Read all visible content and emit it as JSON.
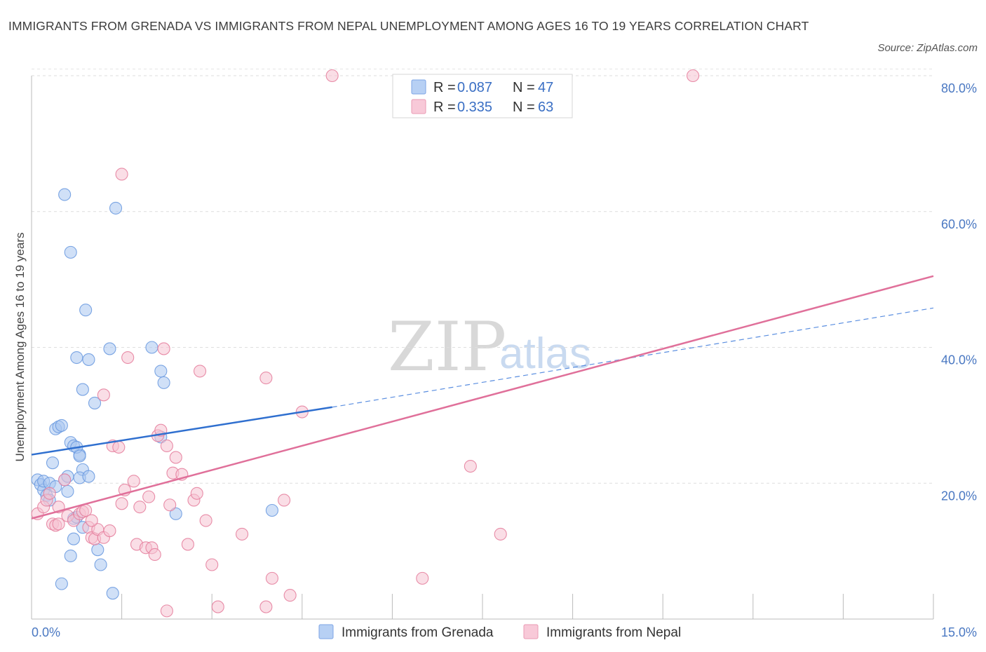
{
  "header": {
    "title": "IMMIGRANTS FROM GRENADA VS IMMIGRANTS FROM NEPAL UNEMPLOYMENT AMONG AGES 16 TO 19 YEARS CORRELATION CHART",
    "source": "Source: ZipAtlas.com"
  },
  "watermark": {
    "zip": "ZIP",
    "atlas": "atlas"
  },
  "legend": {
    "rows": [
      {
        "r_label": "R = ",
        "r_value": "0.087",
        "n_label": "N = ",
        "n_value": "47",
        "color": "#9dbfed"
      },
      {
        "r_label": "R = ",
        "r_value": "0.335",
        "n_label": "N = ",
        "n_value": "63",
        "color": "#f4b8cb"
      }
    ]
  },
  "chart_data": {
    "type": "scatter",
    "title": "IMMIGRANTS FROM GRENADA VS IMMIGRANTS FROM NEPAL UNEMPLOYMENT AMONG AGES 16 TO 19 YEARS CORRELATION CHART",
    "xlabel": "",
    "ylabel": "Unemployment Among Ages 16 to 19 years",
    "xlim": [
      0,
      15
    ],
    "ylim": [
      0,
      80
    ],
    "x_tick_labels": [
      "0.0%",
      "15.0%"
    ],
    "y_ticks": [
      20,
      40,
      60,
      80
    ],
    "y_tick_labels": [
      "20.0%",
      "40.0%",
      "60.0%",
      "80.0%"
    ],
    "grid": true,
    "legend_position": "top-center",
    "series": [
      {
        "name": "Immigrants from Grenada",
        "color": "#6d9be0",
        "fill": "#a9c7f0",
        "R": 0.087,
        "N": 47,
        "trend": {
          "x": [
            0,
            5.0
          ],
          "y": [
            24.2,
            31.2
          ],
          "dashed_to_x": 15,
          "dashed_to_y": 45.8
        },
        "points": [
          [
            0.1,
            20.5
          ],
          [
            0.15,
            19.8
          ],
          [
            0.2,
            19.0
          ],
          [
            0.25,
            18.2
          ],
          [
            0.3,
            17.5
          ],
          [
            0.2,
            20.3
          ],
          [
            0.35,
            23.0
          ],
          [
            0.4,
            28.0
          ],
          [
            0.45,
            28.3
          ],
          [
            0.5,
            28.5
          ],
          [
            0.55,
            20.5
          ],
          [
            0.6,
            21.0
          ],
          [
            0.7,
            14.8
          ],
          [
            0.75,
            15.0
          ],
          [
            0.8,
            24.2
          ],
          [
            0.85,
            22.0
          ],
          [
            0.55,
            62.5
          ],
          [
            0.5,
            5.2
          ],
          [
            0.65,
            54.0
          ],
          [
            0.9,
            45.5
          ],
          [
            0.75,
            38.5
          ],
          [
            0.95,
            38.2
          ],
          [
            0.85,
            33.8
          ],
          [
            1.05,
            31.8
          ],
          [
            0.65,
            26.0
          ],
          [
            0.7,
            25.5
          ],
          [
            0.75,
            25.3
          ],
          [
            0.8,
            20.8
          ],
          [
            0.95,
            21.0
          ],
          [
            0.85,
            13.5
          ],
          [
            0.7,
            11.8
          ],
          [
            0.65,
            9.3
          ],
          [
            1.1,
            10.2
          ],
          [
            1.15,
            8.0
          ],
          [
            1.4,
            60.5
          ],
          [
            1.3,
            39.8
          ],
          [
            2.0,
            40.0
          ],
          [
            2.15,
            36.5
          ],
          [
            2.2,
            34.8
          ],
          [
            2.15,
            26.8
          ],
          [
            2.4,
            15.5
          ],
          [
            4.0,
            16.0
          ],
          [
            1.35,
            3.8
          ],
          [
            0.3,
            20.0
          ],
          [
            0.4,
            19.5
          ],
          [
            0.6,
            18.8
          ],
          [
            0.8,
            24.0
          ]
        ]
      },
      {
        "name": "Immigrants from Nepal",
        "color": "#e6819f",
        "fill": "#f6c2d2",
        "R": 0.335,
        "N": 63,
        "trend": {
          "x": [
            0,
            15
          ],
          "y": [
            14.8,
            50.5
          ]
        },
        "points": [
          [
            0.1,
            15.5
          ],
          [
            0.2,
            16.5
          ],
          [
            0.25,
            17.5
          ],
          [
            0.3,
            18.5
          ],
          [
            0.35,
            14.0
          ],
          [
            0.4,
            13.8
          ],
          [
            0.45,
            16.5
          ],
          [
            0.55,
            20.5
          ],
          [
            0.6,
            15.2
          ],
          [
            0.7,
            14.5
          ],
          [
            0.8,
            15.5
          ],
          [
            0.85,
            15.8
          ],
          [
            0.9,
            16.0
          ],
          [
            0.95,
            13.5
          ],
          [
            1.0,
            12.0
          ],
          [
            1.05,
            11.8
          ],
          [
            1.1,
            13.2
          ],
          [
            1.2,
            12.0
          ],
          [
            1.3,
            13.0
          ],
          [
            1.35,
            25.5
          ],
          [
            1.45,
            25.3
          ],
          [
            1.5,
            17.0
          ],
          [
            1.55,
            19.0
          ],
          [
            1.6,
            38.5
          ],
          [
            1.7,
            20.3
          ],
          [
            1.75,
            11.0
          ],
          [
            1.8,
            16.5
          ],
          [
            1.9,
            10.5
          ],
          [
            1.95,
            18.0
          ],
          [
            2.0,
            10.5
          ],
          [
            2.05,
            9.5
          ],
          [
            2.1,
            27.0
          ],
          [
            2.15,
            27.8
          ],
          [
            2.2,
            39.8
          ],
          [
            2.25,
            25.5
          ],
          [
            2.3,
            16.8
          ],
          [
            2.35,
            21.5
          ],
          [
            2.4,
            23.8
          ],
          [
            2.5,
            21.3
          ],
          [
            2.6,
            11.0
          ],
          [
            2.7,
            17.5
          ],
          [
            2.75,
            18.5
          ],
          [
            2.8,
            36.5
          ],
          [
            2.9,
            14.5
          ],
          [
            3.0,
            8.0
          ],
          [
            3.1,
            1.8
          ],
          [
            3.5,
            12.5
          ],
          [
            3.9,
            35.5
          ],
          [
            4.0,
            6.0
          ],
          [
            4.2,
            17.5
          ],
          [
            4.3,
            3.5
          ],
          [
            4.5,
            30.5
          ],
          [
            1.5,
            65.5
          ],
          [
            5.0,
            80.0
          ],
          [
            6.5,
            6.0
          ],
          [
            7.3,
            22.5
          ],
          [
            7.8,
            12.5
          ],
          [
            11.0,
            80.0
          ],
          [
            3.9,
            1.8
          ],
          [
            2.25,
            1.2
          ],
          [
            1.0,
            14.5
          ],
          [
            1.2,
            33.0
          ],
          [
            0.45,
            14.0
          ]
        ]
      }
    ]
  }
}
